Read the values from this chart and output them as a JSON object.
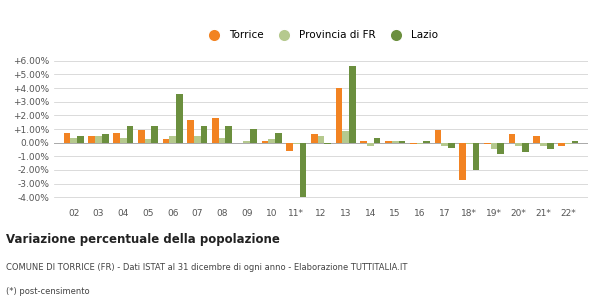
{
  "categories": [
    "02",
    "03",
    "04",
    "05",
    "06",
    "07",
    "08",
    "09",
    "10",
    "11*",
    "12",
    "13",
    "14",
    "15",
    "16",
    "17",
    "18*",
    "19*",
    "20*",
    "21*",
    "22*"
  ],
  "torrice": [
    0.72,
    0.48,
    0.72,
    0.96,
    0.24,
    1.68,
    1.8,
    -0.05,
    0.12,
    -0.6,
    0.6,
    4.0,
    0.12,
    0.12,
    -0.1,
    0.96,
    -2.76,
    -0.12,
    0.6,
    0.48,
    -0.24
  ],
  "provincia": [
    0.36,
    0.48,
    0.36,
    0.24,
    0.48,
    0.48,
    0.36,
    0.12,
    0.24,
    -0.12,
    0.48,
    0.84,
    -0.24,
    0.12,
    -0.12,
    -0.24,
    -0.12,
    -0.48,
    -0.24,
    -0.24,
    -0.12
  ],
  "lazio": [
    0.48,
    0.6,
    1.2,
    1.2,
    3.6,
    1.2,
    1.2,
    1.0,
    0.72,
    -4.0,
    -0.12,
    5.64,
    0.36,
    0.12,
    0.12,
    -0.36,
    -2.04,
    -0.84,
    -0.72,
    -0.48,
    0.12
  ],
  "torrice_color": "#f28322",
  "provincia_color": "#b5c98e",
  "lazio_color": "#6b8f3e",
  "bg_color": "#ffffff",
  "grid_color": "#cccccc",
  "title": "Variazione percentuale della popolazione",
  "subtitle": "COMUNE DI TORRICE (FR) - Dati ISTAT al 31 dicembre di ogni anno - Elaborazione TUTTITALIA.IT",
  "footnote": "(*) post-censimento",
  "ylim": [
    -4.5,
    6.5
  ],
  "yticks": [
    -4.0,
    -3.0,
    -2.0,
    -1.0,
    0.0,
    1.0,
    2.0,
    3.0,
    4.0,
    5.0,
    6.0
  ],
  "bar_width": 0.27
}
